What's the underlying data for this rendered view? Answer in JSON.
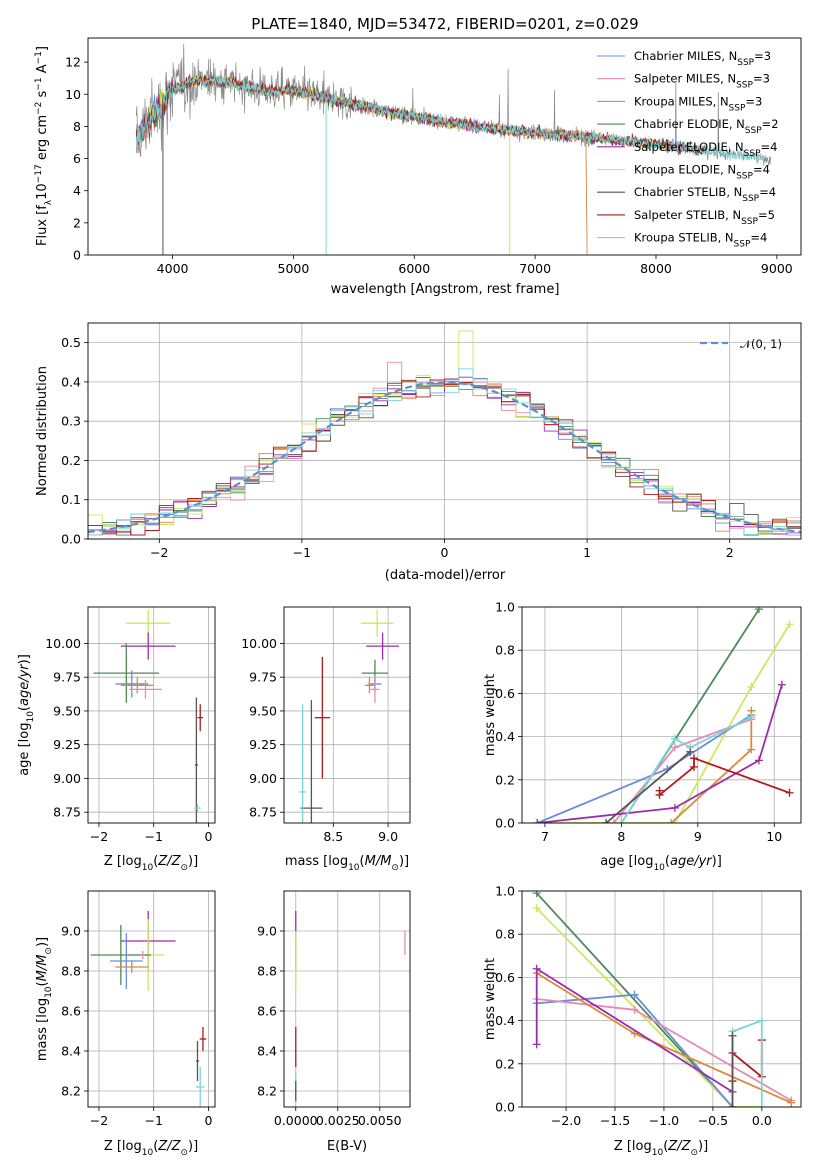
{
  "figure": {
    "title": "PLATE=1840, MJD=53472, FIBERID=0201, z=0.029",
    "colors": {
      "chabrier_miles": "#6a8fd8",
      "salpeter_miles": "#e88ab4",
      "kroupa_miles": "#d98a3a",
      "chabrier_elodie": "#4e8a55",
      "salpeter_elodie": "#9a2ea8",
      "kroupa_elodie": "#cce860",
      "chabrier_stelib": "#555555",
      "salpeter_stelib": "#b01a1a",
      "kroupa_stelib": "#7ad6d6",
      "data": "#888888",
      "normal": "#5b8fd6"
    }
  },
  "chart_data": [
    {
      "id": "spectrum",
      "type": "line",
      "xlabel": "wavelength [Angstrom, rest frame]",
      "ylabel": "Flux [f_λ 10^-17 erg cm^-2 s^-1 A^-1]",
      "xlim": [
        3300,
        9200
      ],
      "ylim": [
        0,
        13.5
      ],
      "xticks": [
        "4000",
        "5000",
        "6000",
        "7000",
        "8000",
        "9000"
      ],
      "yticks": [
        "0",
        "2",
        "4",
        "6",
        "8",
        "10",
        "12"
      ],
      "legend_position": "top-right",
      "legend": [
        {
          "text": "Chabrier MILES, N_SSP=3",
          "color": "#6a8fd8"
        },
        {
          "text": "Salpeter MILES, N_SSP=3",
          "color": "#e88ab4"
        },
        {
          "text": "Kroupa MILES, N_SSP=3",
          "color": "#d98a3a"
        },
        {
          "text": "Chabrier ELODIE, N_SSP=2",
          "color": "#4e8a55"
        },
        {
          "text": "Salpeter ELODIE, N_SSP=4",
          "color": "#9a2ea8"
        },
        {
          "text": "Kroupa ELODIE, N_SSP=4",
          "color": "#cce860"
        },
        {
          "text": "Chabrier STELIB, N_SSP=4",
          "color": "#555555"
        },
        {
          "text": "Salpeter STELIB, N_SSP=5",
          "color": "#b01a1a"
        },
        {
          "text": "Kroupa STELIB, N_SSP=4",
          "color": "#7ad6d6"
        }
      ],
      "continuum": [
        [
          3700,
          7.2
        ],
        [
          3800,
          8.4
        ],
        [
          3900,
          9.2
        ],
        [
          4000,
          10.3
        ],
        [
          4200,
          10.9
        ],
        [
          4500,
          10.7
        ],
        [
          4800,
          10.2
        ],
        [
          5000,
          10.2
        ],
        [
          5300,
          9.7
        ],
        [
          5600,
          9.2
        ],
        [
          6000,
          8.6
        ],
        [
          6500,
          8.0
        ],
        [
          7000,
          7.6
        ],
        [
          7500,
          7.3
        ],
        [
          8000,
          6.9
        ],
        [
          8500,
          6.4
        ],
        [
          8900,
          6.0
        ]
      ]
    },
    {
      "id": "residuals",
      "type": "step",
      "xlabel": "(data-model)/error",
      "ylabel": "Normed distribution",
      "xlim": [
        -2.5,
        2.5
      ],
      "ylim": [
        0,
        0.55
      ],
      "xticks": [
        "−2",
        "−1",
        "0",
        "1",
        "2"
      ],
      "yticks": [
        "0.0",
        "0.1",
        "0.2",
        "0.3",
        "0.4",
        "0.5"
      ],
      "legend_position": "top-right",
      "legend": [
        {
          "text": "𝒩(0, 1)",
          "color": "#5b8fd6"
        }
      ],
      "bin_width": 0.1,
      "outliers": [
        {
          "series": 5,
          "x": 0.1,
          "y": 0.53
        },
        {
          "series": 1,
          "x": -0.4,
          "y": 0.45
        }
      ]
    },
    {
      "id": "age-vs-Z",
      "type": "scatter",
      "xlabel": "Z [log10(Z/Z⊙)]",
      "ylabel": "age [log10(age/yr)]",
      "xlim": [
        -2.2,
        0.12
      ],
      "ylim": [
        8.67,
        10.27
      ],
      "xticks": [
        -2,
        -1,
        0
      ],
      "yticks": [
        "8.75",
        "9.00",
        "9.25",
        "9.50",
        "9.75",
        "10.00"
      ],
      "points": [
        {
          "c": "#cce860",
          "x": -1.1,
          "y": 10.15,
          "xe": 0.4,
          "ye": 0.1
        },
        {
          "c": "#9a2ea8",
          "x": -1.1,
          "y": 9.98,
          "xe": 0.5,
          "ye": 0.1
        },
        {
          "c": "#4e8a55",
          "x": -1.5,
          "y": 9.78,
          "xe": 0.6,
          "ye": 0.22
        },
        {
          "c": "#6a8fd8",
          "x": -1.4,
          "y": 9.7,
          "xe": 0.3,
          "ye": 0.1
        },
        {
          "c": "#d98a3a",
          "x": -1.3,
          "y": 9.69,
          "xe": 0.3,
          "ye": 0.06
        },
        {
          "c": "#e88ab4",
          "x": -1.15,
          "y": 9.66,
          "xe": 0.3,
          "ye": 0.07
        },
        {
          "c": "#555555",
          "x": -0.22,
          "y": 9.1,
          "xe": 0.03,
          "ye": 0.5
        },
        {
          "c": "#b01a1a",
          "x": -0.15,
          "y": 9.45,
          "xe": 0.05,
          "ye": 0.1
        },
        {
          "c": "#7ad6d6",
          "x": -0.2,
          "y": 8.78,
          "xe": 0.06,
          "ye": 0.03
        }
      ]
    },
    {
      "id": "age-vs-mass",
      "type": "scatter",
      "xlabel": "mass [log10(M/M⊙)]",
      "xlim": [
        8.05,
        9.2
      ],
      "ylim": [
        8.67,
        10.27
      ],
      "xticks": [
        "8.5",
        "9.0"
      ],
      "yticks": [
        "8.75",
        "9.00",
        "9.25",
        "9.50",
        "9.75",
        "10.00"
      ],
      "points": [
        {
          "c": "#cce860",
          "x": 8.9,
          "y": 10.15,
          "xe": 0.15,
          "ye": 0.1
        },
        {
          "c": "#9a2ea8",
          "x": 8.95,
          "y": 9.98,
          "xe": 0.15,
          "ye": 0.1
        },
        {
          "c": "#4e8a55",
          "x": 8.88,
          "y": 9.78,
          "xe": 0.12,
          "ye": 0.1
        },
        {
          "c": "#6a8fd8",
          "x": 8.88,
          "y": 9.7,
          "xe": 0.06,
          "ye": 0.05
        },
        {
          "c": "#d98a3a",
          "x": 8.83,
          "y": 9.69,
          "xe": 0.04,
          "ye": 0.06
        },
        {
          "c": "#e88ab4",
          "x": 8.88,
          "y": 9.66,
          "xe": 0.04,
          "ye": 0.1
        },
        {
          "c": "#555555",
          "x": 8.3,
          "y": 8.78,
          "xe": 0.1,
          "ye": 0.8
        },
        {
          "c": "#b01a1a",
          "x": 8.4,
          "y": 9.45,
          "xe": 0.07,
          "ye": 0.45
        },
        {
          "c": "#7ad6d6",
          "x": 8.22,
          "y": 8.9,
          "xe": 0.03,
          "ye": 0.65
        }
      ]
    },
    {
      "id": "mass-vs-Z",
      "type": "scatter",
      "xlabel": "Z [log10(Z/Z⊙)]",
      "ylabel": "mass [log10(M/M⊙)]",
      "xlim": [
        -2.2,
        0.12
      ],
      "ylim": [
        8.12,
        9.2
      ],
      "xticks": [
        -2,
        -1,
        0
      ],
      "yticks": [
        "8.2",
        "8.4",
        "8.6",
        "8.8",
        "9.0"
      ],
      "points": [
        {
          "c": "#9a2ea8",
          "x": -1.1,
          "y": 8.95,
          "xe": 0.5,
          "ye": 0.15
        },
        {
          "c": "#cce860",
          "x": -1.1,
          "y": 8.88,
          "xe": 0.3,
          "ye": 0.18
        },
        {
          "c": "#4e8a55",
          "x": -1.6,
          "y": 8.88,
          "xe": 0.55,
          "ye": 0.15
        },
        {
          "c": "#6a8fd8",
          "x": -1.5,
          "y": 8.85,
          "xe": 0.3,
          "ye": 0.14
        },
        {
          "c": "#d98a3a",
          "x": -1.4,
          "y": 8.82,
          "xe": 0.3,
          "ye": 0.03
        },
        {
          "c": "#e88ab4",
          "x": -1.2,
          "y": 8.88,
          "xe": 0.02,
          "ye": 0.02
        },
        {
          "c": "#b01a1a",
          "x": -0.1,
          "y": 8.46,
          "xe": 0.06,
          "ye": 0.06
        },
        {
          "c": "#555555",
          "x": -0.2,
          "y": 8.35,
          "xe": 0.03,
          "ye": 0.1
        },
        {
          "c": "#7ad6d6",
          "x": -0.15,
          "y": 8.22,
          "xe": 0.08,
          "ye": 0.1
        }
      ]
    },
    {
      "id": "mass-vs-ebv",
      "type": "scatter",
      "xlabel": "E(B-V)",
      "xlim": [
        -0.0007,
        0.0068
      ],
      "ylim": [
        8.12,
        9.2
      ],
      "xticks": [
        "0.0000",
        "0.0025",
        "0.0050"
      ],
      "yticks": [
        "8.2",
        "8.4",
        "8.6",
        "8.8",
        "9.0"
      ],
      "points": [
        {
          "c": "#9a2ea8",
          "x": 0.0,
          "y": 8.95,
          "ye": 0.15
        },
        {
          "c": "#cce860",
          "x": 0.0,
          "y": 8.85,
          "ye": 0.15
        },
        {
          "c": "#b01a1a",
          "x": 0.0,
          "y": 8.42,
          "ye": 0.1
        },
        {
          "c": "#7ad6d6",
          "x": 0.0,
          "y": 8.22,
          "ye": 0.08
        },
        {
          "c": "#555555",
          "x": 0.0,
          "y": 8.2,
          "ye": 0.05
        },
        {
          "c": "#e88ab4",
          "x": 0.0065,
          "y": 8.94,
          "ye": 0.06
        }
      ]
    },
    {
      "id": "weight-vs-age",
      "type": "line",
      "xlabel": "age [log10(age/yr)]",
      "ylabel": "mass weight",
      "xlim": [
        6.7,
        10.35
      ],
      "ylim": [
        0,
        1
      ],
      "xticks": [
        "7",
        "8",
        "9",
        "10"
      ],
      "yticks": [
        "0.0",
        "0.2",
        "0.4",
        "0.6",
        "0.8",
        "1.0"
      ],
      "series": [
        {
          "c": "#4e8a55",
          "pts": [
            [
              8.0,
              0.0
            ],
            [
              9.8,
              0.99
            ]
          ]
        },
        {
          "c": "#cce860",
          "pts": [
            [
              6.9,
              0.0
            ],
            [
              8.7,
              0.0
            ],
            [
              9.7,
              0.63
            ],
            [
              10.2,
              0.92
            ]
          ]
        },
        {
          "c": "#6a8fd8",
          "pts": [
            [
              6.9,
              0.0
            ],
            [
              8.6,
              0.25
            ],
            [
              9.7,
              0.5
            ]
          ]
        },
        {
          "c": "#e88ab4",
          "pts": [
            [
              7.9,
              0.0
            ],
            [
              8.7,
              0.35
            ],
            [
              9.7,
              0.48
            ]
          ]
        },
        {
          "c": "#d98a3a",
          "pts": [
            [
              8.65,
              0.0
            ],
            [
              9.7,
              0.34
            ],
            [
              9.7,
              0.52
            ]
          ]
        },
        {
          "c": "#9a2ea8",
          "pts": [
            [
              6.9,
              0.0
            ],
            [
              8.7,
              0.07
            ],
            [
              9.8,
              0.29
            ],
            [
              10.1,
              0.64
            ]
          ]
        },
        {
          "c": "#b01a1a",
          "pts": [
            [
              8.5,
              0.15
            ],
            [
              8.5,
              0.13
            ],
            [
              8.95,
              0.26
            ],
            [
              8.95,
              0.3
            ],
            [
              10.2,
              0.14
            ]
          ]
        },
        {
          "c": "#7ad6d6",
          "pts": [
            [
              8.0,
              0.0
            ],
            [
              8.7,
              0.39
            ],
            [
              8.9,
              0.35
            ],
            [
              9.7,
              0.49
            ]
          ]
        },
        {
          "c": "#555555",
          "pts": [
            [
              7.8,
              0.0
            ],
            [
              8.9,
              0.33
            ]
          ]
        }
      ]
    },
    {
      "id": "weight-vs-Z",
      "type": "line",
      "xlabel": "Z [log10(Z/Z⊙)]",
      "ylabel": "mass weight",
      "xlim": [
        -2.45,
        0.4
      ],
      "ylim": [
        0,
        1
      ],
      "xticks": [
        "−2.0",
        "−1.5",
        "−1.0",
        "−0.5",
        "0.0"
      ],
      "yticks": [
        "0.0",
        "0.2",
        "0.4",
        "0.6",
        "0.8",
        "1.0"
      ],
      "series": [
        {
          "c": "#4e8a55",
          "pts": [
            [
              -2.3,
              0.99
            ],
            [
              -0.3,
              0.0
            ]
          ]
        },
        {
          "c": "#cce860",
          "pts": [
            [
              -2.3,
              0.92
            ],
            [
              -0.3,
              0.0
            ],
            [
              0.0,
              0.0
            ]
          ]
        },
        {
          "c": "#6a8fd8",
          "pts": [
            [
              -2.3,
              0.48
            ],
            [
              -1.3,
              0.52
            ],
            [
              -0.3,
              0.0
            ]
          ]
        },
        {
          "c": "#e88ab4",
          "pts": [
            [
              -2.3,
              0.5
            ],
            [
              -1.3,
              0.45
            ],
            [
              0.3,
              0.03
            ]
          ]
        },
        {
          "c": "#d98a3a",
          "pts": [
            [
              -2.3,
              0.62
            ],
            [
              -1.3,
              0.34
            ],
            [
              0.3,
              0.02
            ]
          ]
        },
        {
          "c": "#9a2ea8",
          "pts": [
            [
              -2.3,
              0.29
            ],
            [
              -2.3,
              0.64
            ],
            [
              -0.3,
              0.07
            ]
          ]
        },
        {
          "c": "#b01a1a",
          "pts": [
            [
              -0.3,
              0.12
            ],
            [
              -0.3,
              0.25
            ],
            [
              0.0,
              0.14
            ],
            [
              0.0,
              0.31
            ]
          ]
        },
        {
          "c": "#7ad6d6",
          "pts": [
            [
              -0.3,
              0.0
            ],
            [
              -0.3,
              0.35
            ],
            [
              0.0,
              0.4
            ],
            [
              0.0,
              0.0
            ]
          ]
        },
        {
          "c": "#555555",
          "pts": [
            [
              -0.3,
              0.0
            ],
            [
              -0.3,
              0.33
            ]
          ]
        }
      ]
    }
  ]
}
